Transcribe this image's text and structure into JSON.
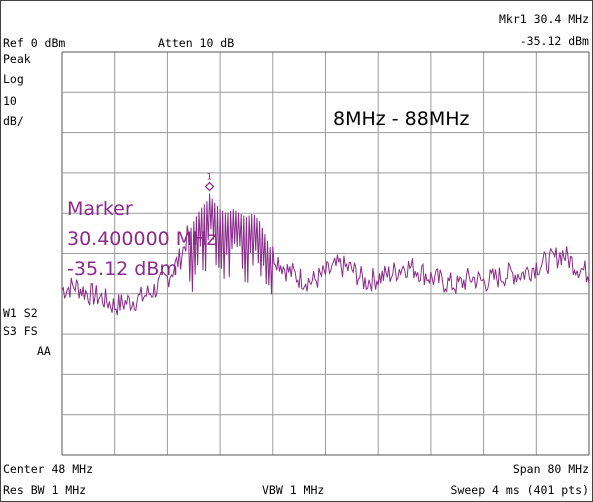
{
  "header": {
    "ref_level": "Ref 0 dBm",
    "attenuation": "Atten 10 dB",
    "marker_readout_freq": "Mkr1  30.4 MHz",
    "marker_readout_level": "-35.12 dBm"
  },
  "left_labels": {
    "detector": "Peak",
    "scale_type": "Log",
    "scale_value": "10",
    "scale_unit": "dB/",
    "trace_line1": "W1  S2",
    "trace_line2": "S3  FS",
    "trace_line3": "AA"
  },
  "footer": {
    "center": "Center 48 MHz",
    "span": "Span 80 MHz",
    "res_bw": "Res BW 1 MHz",
    "vbw": "VBW 1 MHz",
    "sweep": "Sweep 4 ms (401 pts)"
  },
  "annotation": {
    "range": "8MHz - 88MHz",
    "marker_label": "Marker",
    "marker_freq": "30.400000 MHz",
    "marker_level": "-35.12 dBm",
    "marker_number": "1"
  },
  "colors": {
    "trace": "#8a2a8a",
    "grid": "#9a9a9a",
    "background": "#ffffff"
  },
  "chart_data": {
    "type": "line",
    "xlim": [
      8,
      88
    ],
    "ylim": [
      -100,
      0
    ],
    "x_divisions": 10,
    "y_divisions": 10,
    "grid": true,
    "marker": {
      "x": 30.4,
      "y": -35.12,
      "label": "1"
    },
    "series": [
      {
        "x": [
          8,
          10,
          12,
          14,
          16,
          18,
          20,
          22,
          24,
          26,
          27,
          28,
          29,
          30,
          30.4,
          31,
          32,
          33,
          34,
          35,
          36,
          37,
          38,
          39,
          40,
          41,
          42,
          44,
          46,
          48,
          50,
          52,
          54,
          56,
          58,
          60,
          62,
          64,
          66,
          68,
          70,
          72,
          74,
          76,
          78,
          80,
          82,
          84,
          86,
          88
        ],
        "y": [
          -59,
          -58,
          -60,
          -61,
          -63,
          -62,
          -61,
          -59,
          -56,
          -51,
          -46,
          -42,
          -39,
          -37,
          -35.12,
          -37,
          -39,
          -40,
          -39,
          -40,
          -41,
          -40,
          -42,
          -46,
          -50,
          -52,
          -54,
          -56,
          -57,
          -55,
          -53,
          -54,
          -57,
          -56,
          -55,
          -53,
          -54,
          -56,
          -57,
          -58,
          -56,
          -57,
          -56,
          -55,
          -55,
          -53,
          -52,
          -50,
          -53,
          -55
        ]
      }
    ]
  }
}
